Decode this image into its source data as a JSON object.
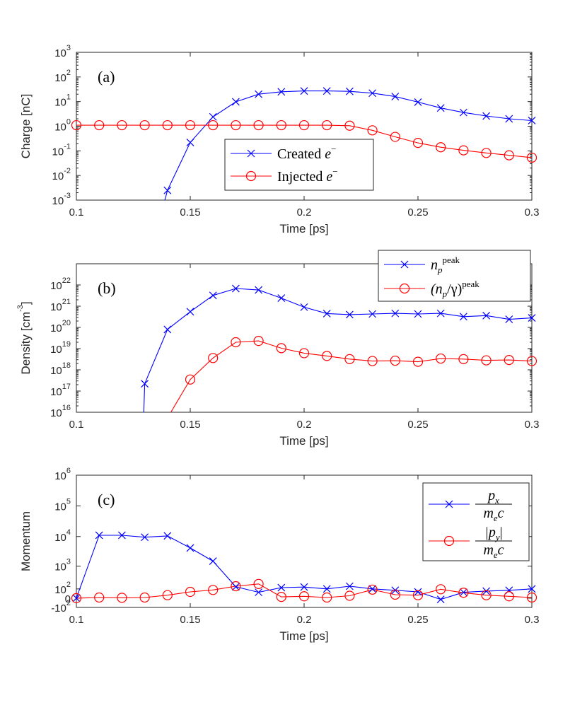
{
  "chart_data": [
    {
      "type": "line",
      "panel_label": "(a)",
      "xlabel": "Time [ps]",
      "ylabel": "Charge [nC]",
      "yscale": "log",
      "xlim": [
        0.1,
        0.3
      ],
      "ylim": [
        0.001,
        1000
      ],
      "x_ticks": [
        "0.1",
        "0.15",
        "0.2",
        "0.25",
        "0.3"
      ],
      "y_tick_exponents": [
        "-3",
        "-2",
        "-1",
        "0",
        "1",
        "2",
        "3"
      ],
      "legend_position": "bottom-center",
      "series": [
        {
          "name": "Created e⁻",
          "legend_main": "Created ",
          "legend_var": "e",
          "legend_sup": "−",
          "color": "#0000ff",
          "marker": "x",
          "x": [
            0.14,
            0.15,
            0.16,
            0.17,
            0.18,
            0.19,
            0.2,
            0.21,
            0.22,
            0.23,
            0.24,
            0.25,
            0.26,
            0.27,
            0.28,
            0.29,
            0.3
          ],
          "y": [
            0.0025,
            0.22,
            2.4,
            9.8,
            20,
            25,
            27,
            27,
            26,
            22,
            16,
            9.5,
            5.5,
            3.6,
            2.6,
            2.0,
            1.7
          ],
          "line_start": [
            0.1385,
            0.00075
          ]
        },
        {
          "name": "Injected e⁻",
          "legend_main": "Injected ",
          "legend_var": "e",
          "legend_sup": "−",
          "color": "#ff0000",
          "marker": "o",
          "x": [
            0.1,
            0.11,
            0.12,
            0.13,
            0.14,
            0.15,
            0.16,
            0.17,
            0.18,
            0.19,
            0.2,
            0.21,
            0.22,
            0.23,
            0.24,
            0.25,
            0.26,
            0.27,
            0.28,
            0.29,
            0.3
          ],
          "y": [
            1.1,
            1.1,
            1.1,
            1.1,
            1.1,
            1.1,
            1.1,
            1.1,
            1.1,
            1.1,
            1.1,
            1.1,
            1.05,
            0.68,
            0.37,
            0.21,
            0.14,
            0.105,
            0.082,
            0.066,
            0.053
          ]
        }
      ]
    },
    {
      "type": "line",
      "panel_label": "(b)",
      "xlabel": "Time [ps]",
      "ylabel": "Density [cm",
      "ylabel_sup": "-3",
      "ylabel_close": "]",
      "yscale": "log",
      "xlim": [
        0.1,
        0.3
      ],
      "ylim": [
        1e+16,
        1e+23
      ],
      "x_ticks": [
        "0.1",
        "0.15",
        "0.2",
        "0.25",
        "0.3"
      ],
      "y_tick_exponents": [
        "16",
        "17",
        "18",
        "19",
        "20",
        "21",
        "22"
      ],
      "legend_position": "top-right",
      "series": [
        {
          "name": "n_p^peak",
          "legend_var": "n",
          "legend_sub": "p",
          "legend_sup": "peak",
          "color": "#0000ff",
          "marker": "x",
          "x": [
            0.13,
            0.14,
            0.15,
            0.16,
            0.17,
            0.18,
            0.19,
            0.2,
            0.21,
            0.22,
            0.23,
            0.24,
            0.25,
            0.26,
            0.27,
            0.28,
            0.29,
            0.3
          ],
          "y": [
            2.2e+17,
            8e+19,
            5.5e+20,
            3.2e+21,
            6.8e+21,
            5.8e+21,
            2.4e+21,
            9e+20,
            4.5e+20,
            4e+20,
            4.3e+20,
            4.6e+20,
            4.3e+20,
            4.6e+20,
            3.2e+20,
            3.6e+20,
            2.4e+20,
            2.8e+20
          ],
          "line_start": [
            0.1296,
            1e+16
          ]
        },
        {
          "name": "(n_p/γ)^peak",
          "legend_var": "(n",
          "legend_sub": "p",
          "legend_mid": "/γ)",
          "legend_sup": "peak",
          "color": "#ff0000",
          "marker": "o",
          "x": [
            0.15,
            0.16,
            0.17,
            0.18,
            0.19,
            0.2,
            0.21,
            0.22,
            0.23,
            0.24,
            0.25,
            0.26,
            0.27,
            0.28,
            0.29,
            0.3
          ],
          "y": [
            3.5e+17,
            3.6e+18,
            2e+19,
            2.3e+19,
            1.05e+19,
            6.1e+18,
            4.5e+18,
            3.2e+18,
            2.6e+18,
            2.7e+18,
            2.4e+18,
            3.4e+18,
            3.2e+18,
            2.8e+18,
            2.9e+18,
            2.6e+18
          ],
          "line_start": [
            0.1415,
            1e+16
          ]
        }
      ]
    },
    {
      "type": "line",
      "panel_label": "(c)",
      "xlabel": "Time [ps]",
      "ylabel": "Momentum",
      "yscale": "symlog",
      "xlim": [
        0.1,
        0.3
      ],
      "ylim": [
        -100,
        1000000
      ],
      "x_ticks": [
        "0.1",
        "0.15",
        "0.2",
        "0.25",
        "0.3"
      ],
      "y_ticks": [
        {
          "base": "-10",
          "exp": "2",
          "value": -100
        },
        {
          "base": "0",
          "exp": "",
          "value": 0
        },
        {
          "base": "10",
          "exp": "2",
          "value": 100
        },
        {
          "base": "10",
          "exp": "3",
          "value": 1000
        },
        {
          "base": "10",
          "exp": "4",
          "value": 10000
        },
        {
          "base": "10",
          "exp": "5",
          "value": 100000
        },
        {
          "base": "10",
          "exp": "6",
          "value": 1000000
        }
      ],
      "legend_position": "right",
      "series": [
        {
          "name": "p_x/(m_e c)",
          "num_var": "p",
          "num_sub": "x",
          "den_var": "m",
          "den_sub": "e",
          "den_tail": "c",
          "color": "#0000ff",
          "marker": "x",
          "x": [
            0.1,
            0.11,
            0.12,
            0.13,
            0.14,
            0.15,
            0.16,
            0.17,
            0.18,
            0.19,
            0.2,
            0.21,
            0.22,
            0.23,
            0.24,
            0.25,
            0.26,
            0.27,
            0.28,
            0.29,
            0.3
          ],
          "y": [
            0,
            11000,
            11000,
            9500,
            10500,
            4200,
            1500,
            135,
            55,
            120,
            130,
            100,
            145,
            100,
            80,
            60,
            -10,
            55,
            70,
            80,
            100
          ]
        },
        {
          "name": "|p_y|/(m_e c)",
          "num_var": "|p",
          "num_sub": "y",
          "num_tail": "|",
          "den_var": "m",
          "den_sub": "e",
          "den_tail": "c",
          "color": "#ff0000",
          "marker": "o",
          "x": [
            0.1,
            0.11,
            0.12,
            0.13,
            0.14,
            0.15,
            0.16,
            0.17,
            0.18,
            0.19,
            0.2,
            0.21,
            0.22,
            0.23,
            0.24,
            0.25,
            0.26,
            0.27,
            0.28,
            0.29,
            0.3
          ],
          "y": [
            0,
            5,
            3,
            5,
            25,
            60,
            85,
            145,
            190,
            10,
            15,
            5,
            20,
            90,
            30,
            25,
            95,
            50,
            25,
            15,
            5
          ]
        }
      ]
    }
  ]
}
